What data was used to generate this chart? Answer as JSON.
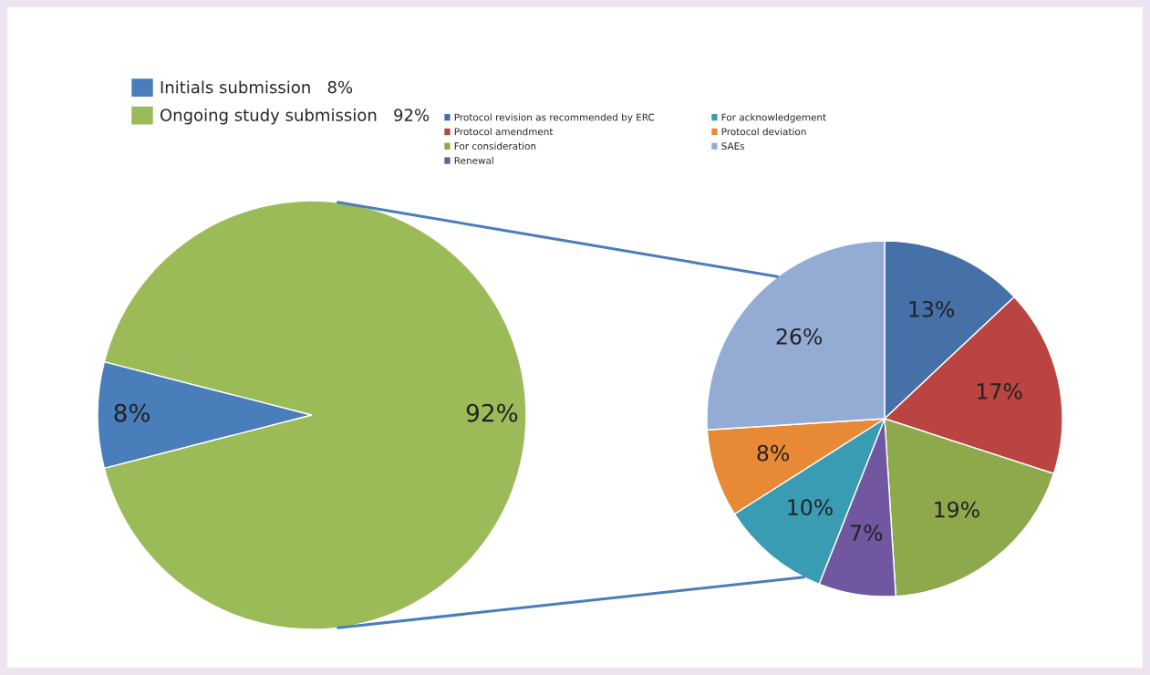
{
  "chart_data": [
    {
      "type": "pie",
      "categories": [
        "Initials submission",
        "Ongoing study submission"
      ],
      "values": [
        8,
        92
      ],
      "colors": [
        "#4a7ebb",
        "#9bbb59"
      ],
      "value_labels": [
        "8%",
        "92%"
      ],
      "legend": "top left"
    },
    {
      "type": "pie",
      "categories": [
        "Protocol revision as recommended by ERC",
        "Protocol amendment",
        "For consideration",
        "Renewal",
        "For acknowledgement",
        "Protocol deviation",
        "SAEs"
      ],
      "values": [
        13,
        17,
        19,
        7,
        10,
        8,
        26
      ],
      "colors": [
        "#4670a8",
        "#b94441",
        "#8ea84c",
        "#7057a0",
        "#3a9cb3",
        "#e88a35",
        "#94acd4"
      ],
      "value_labels": [
        "13%",
        "17%",
        "19%",
        "7%",
        "10%",
        "8%",
        "26%"
      ],
      "legend": "top"
    }
  ]
}
